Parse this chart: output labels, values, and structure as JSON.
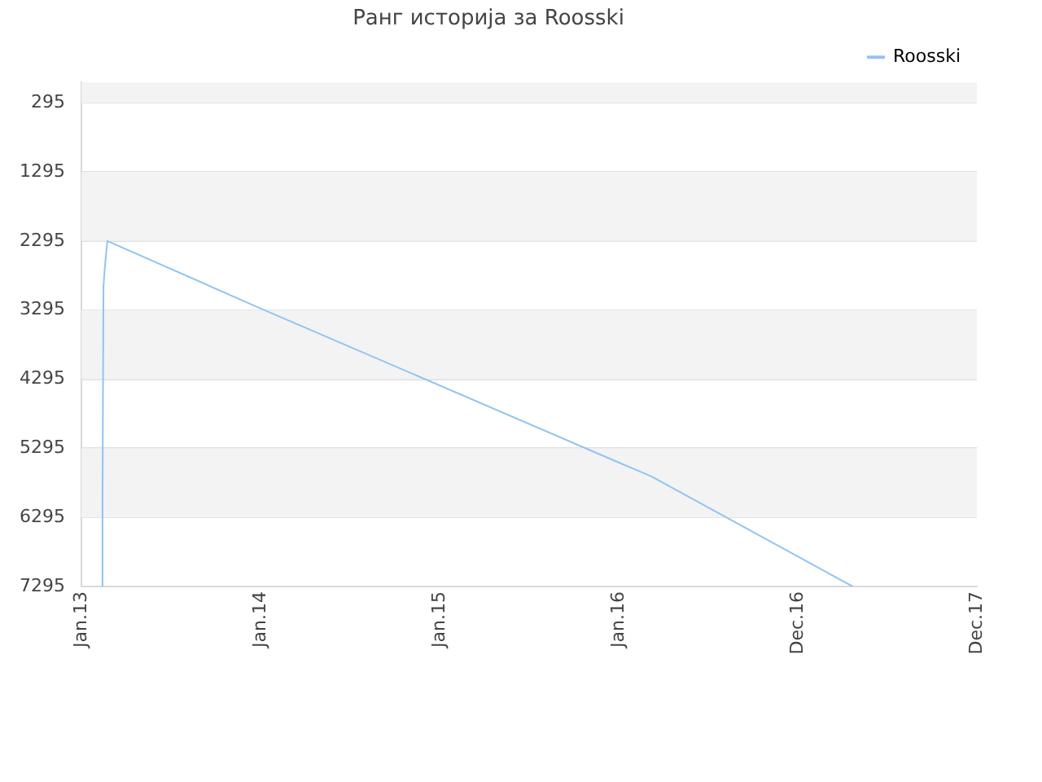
{
  "chart_data": {
    "type": "line",
    "title": "Ранг историја за Roosski",
    "x": [
      "2013-02-13",
      "2013-02-13",
      "2013-02-15",
      "2013-02-18",
      "2013-02-23",
      "2014-01-01",
      "2016-01-01",
      "2016-03-07",
      "2017-04-22"
    ],
    "series": [
      {
        "name": "Roosski",
        "color": "#90c4f5",
        "values": [
          7295,
          6050,
          2950,
          2650,
          2295,
          3270,
          5500,
          5700,
          7295
        ]
      }
    ],
    "xlim": [
      "2013-01-01",
      "2017-12-31"
    ],
    "xticks": [
      {
        "value": "2013-01-01",
        "label": "Jan.13"
      },
      {
        "value": "2014-01-01",
        "label": "Jan.14"
      },
      {
        "value": "2015-01-01",
        "label": "Jan.15"
      },
      {
        "value": "2016-01-01",
        "label": "Jan.16"
      },
      {
        "value": "2016-12-31",
        "label": "Dec.16"
      },
      {
        "value": "2017-12-31",
        "label": "Dec.17"
      }
    ],
    "ylim": [
      7295,
      0
    ],
    "yticks": [
      295,
      1295,
      2295,
      3295,
      4295,
      5295,
      6295,
      7295
    ],
    "grid": "y",
    "legend": "top right",
    "marker": "none",
    "line_style": "solid"
  }
}
